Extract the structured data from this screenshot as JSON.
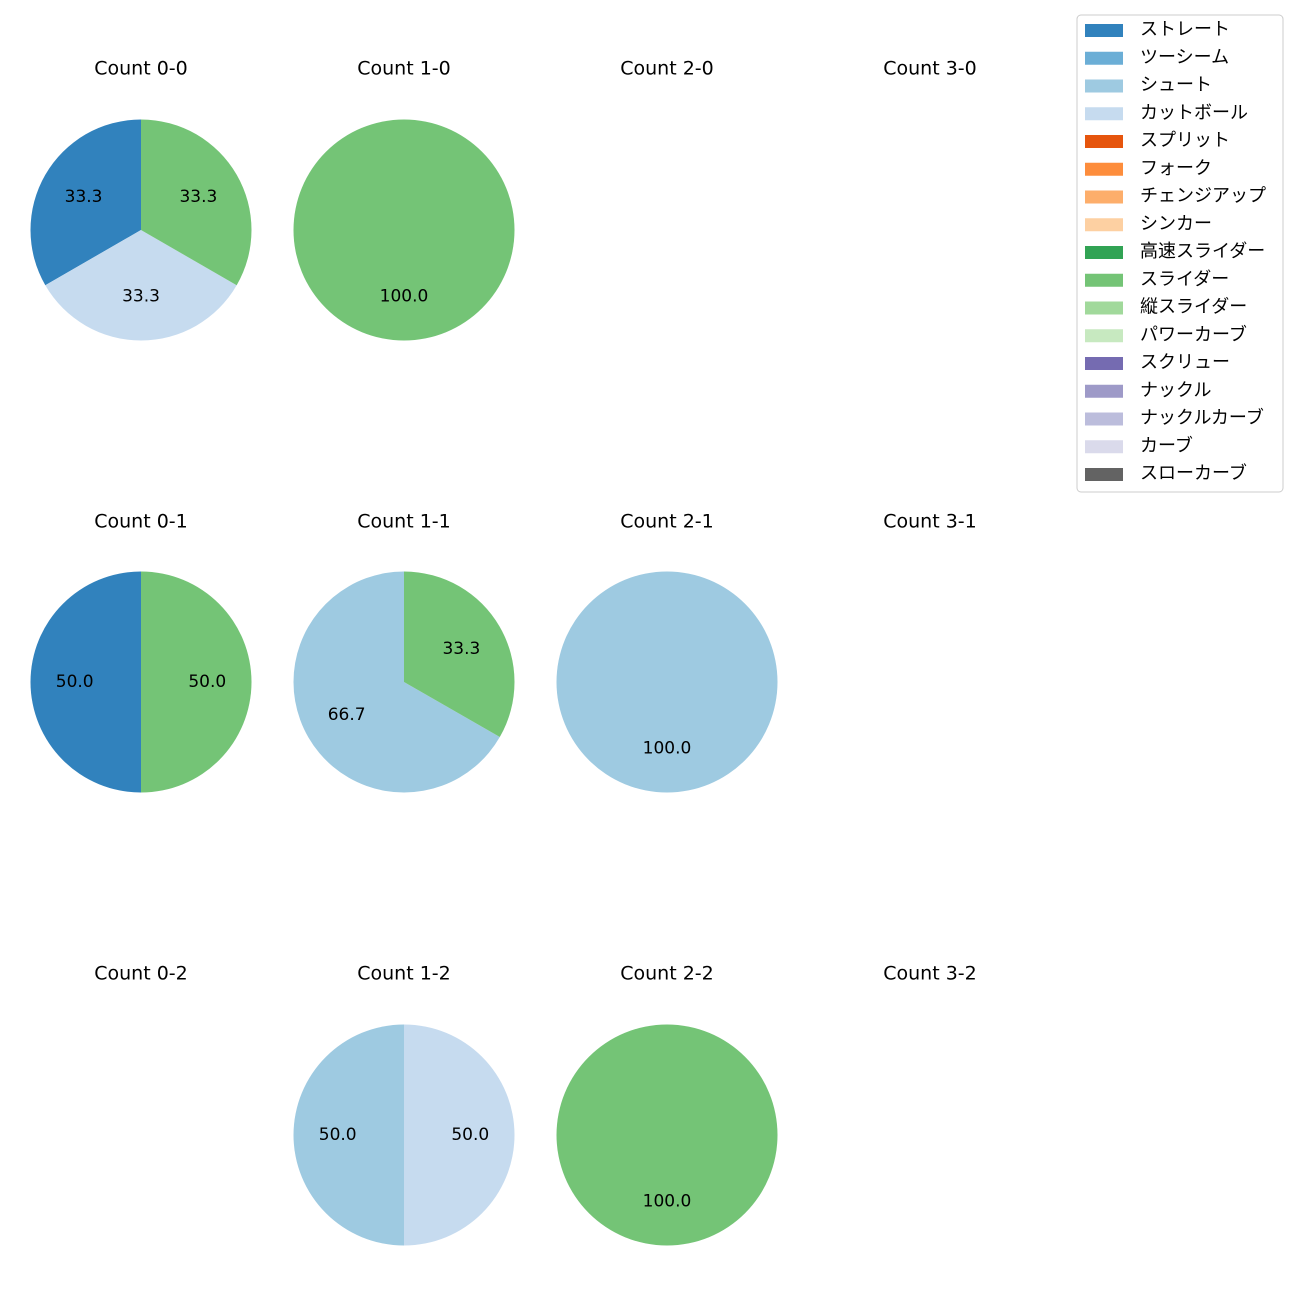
{
  "chart_data": {
    "type": "pie",
    "value_format": "percent, one decimal",
    "legend": {
      "placement": "top-right",
      "entries": [
        {
          "label": "ストレート",
          "color": "#3182bd"
        },
        {
          "label": "ツーシーム",
          "color": "#6baed6"
        },
        {
          "label": "シュート",
          "color": "#9ecae1"
        },
        {
          "label": "カットボール",
          "color": "#c6dbef"
        },
        {
          "label": "スプリット",
          "color": "#e6550d"
        },
        {
          "label": "フォーク",
          "color": "#fd8d3c"
        },
        {
          "label": "チェンジアップ",
          "color": "#fdae6b"
        },
        {
          "label": "シンカー",
          "color": "#fdd0a2"
        },
        {
          "label": "高速スライダー",
          "color": "#31a354"
        },
        {
          "label": "スライダー",
          "color": "#74c476"
        },
        {
          "label": "縦スライダー",
          "color": "#a1d99b"
        },
        {
          "label": "パワーカーブ",
          "color": "#c7e9c0"
        },
        {
          "label": "スクリュー",
          "color": "#756bb1"
        },
        {
          "label": "ナックル",
          "color": "#9e9ac8"
        },
        {
          "label": "ナックルカーブ",
          "color": "#bcbddc"
        },
        {
          "label": "カーブ",
          "color": "#dadaeb"
        },
        {
          "label": "スローカーブ",
          "color": "#636363"
        }
      ]
    },
    "panels": [
      {
        "title": "Count 0-0",
        "slices": [
          {
            "pitch": "ストレート",
            "value": 33.3
          },
          {
            "pitch": "カットボール",
            "value": 33.3
          },
          {
            "pitch": "スライダー",
            "value": 33.3
          }
        ]
      },
      {
        "title": "Count 1-0",
        "slices": [
          {
            "pitch": "スライダー",
            "value": 100.0
          }
        ]
      },
      {
        "title": "Count 2-0",
        "slices": []
      },
      {
        "title": "Count 3-0",
        "slices": []
      },
      {
        "title": "Count 0-1",
        "slices": [
          {
            "pitch": "ストレート",
            "value": 50.0
          },
          {
            "pitch": "スライダー",
            "value": 50.0
          }
        ]
      },
      {
        "title": "Count 1-1",
        "slices": [
          {
            "pitch": "シュート",
            "value": 66.7
          },
          {
            "pitch": "スライダー",
            "value": 33.3
          }
        ]
      },
      {
        "title": "Count 2-1",
        "slices": [
          {
            "pitch": "シュート",
            "value": 100.0
          }
        ]
      },
      {
        "title": "Count 3-1",
        "slices": []
      },
      {
        "title": "Count 0-2",
        "slices": []
      },
      {
        "title": "Count 1-2",
        "slices": [
          {
            "pitch": "シュート",
            "value": 50.0
          },
          {
            "pitch": "カットボール",
            "value": 50.0
          }
        ]
      },
      {
        "title": "Count 2-2",
        "slices": [
          {
            "pitch": "スライダー",
            "value": 100.0
          }
        ]
      },
      {
        "title": "Count 3-2",
        "slices": []
      }
    ]
  }
}
